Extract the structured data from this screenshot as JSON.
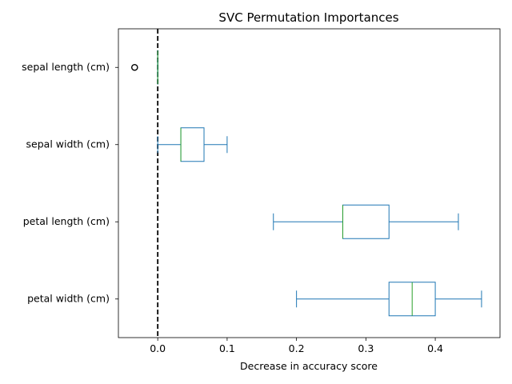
{
  "chart_data": {
    "type": "box",
    "orientation": "horizontal",
    "title": "SVC Permutation Importances",
    "xlabel": "Decrease in accuracy score",
    "ylabel": "",
    "xlim": [
      -0.0567,
      0.4933
    ],
    "xticks": [
      0.0,
      0.1,
      0.2,
      0.3,
      0.4
    ],
    "xtick_labels": [
      "0.0",
      "0.1",
      "0.2",
      "0.3",
      "0.4"
    ],
    "grid": false,
    "reference_line": {
      "x": 0.0,
      "style": "dashed",
      "color": "#000000"
    },
    "colors": {
      "box": "#1f77b4",
      "median": "#2ca02c",
      "outlier": "#000000"
    },
    "categories": [
      "sepal length (cm)",
      "sepal width (cm)",
      "petal length (cm)",
      "petal width (cm)"
    ],
    "boxes": [
      {
        "category": "sepal length (cm)",
        "whisker_low": 0.0,
        "q1": 0.0,
        "median": 0.0,
        "q3": 0.0,
        "whisker_high": 0.0,
        "outliers": [
          -0.0333
        ]
      },
      {
        "category": "sepal width (cm)",
        "whisker_low": 0.0,
        "q1": 0.0333,
        "median": 0.0333,
        "q3": 0.0667,
        "whisker_high": 0.1,
        "outliers": []
      },
      {
        "category": "petal length (cm)",
        "whisker_low": 0.1667,
        "q1": 0.2667,
        "median": 0.2667,
        "q3": 0.3333,
        "whisker_high": 0.4333,
        "outliers": []
      },
      {
        "category": "petal width (cm)",
        "whisker_low": 0.2,
        "q1": 0.3333,
        "median": 0.3667,
        "q3": 0.4,
        "whisker_high": 0.4667,
        "outliers": []
      }
    ]
  }
}
